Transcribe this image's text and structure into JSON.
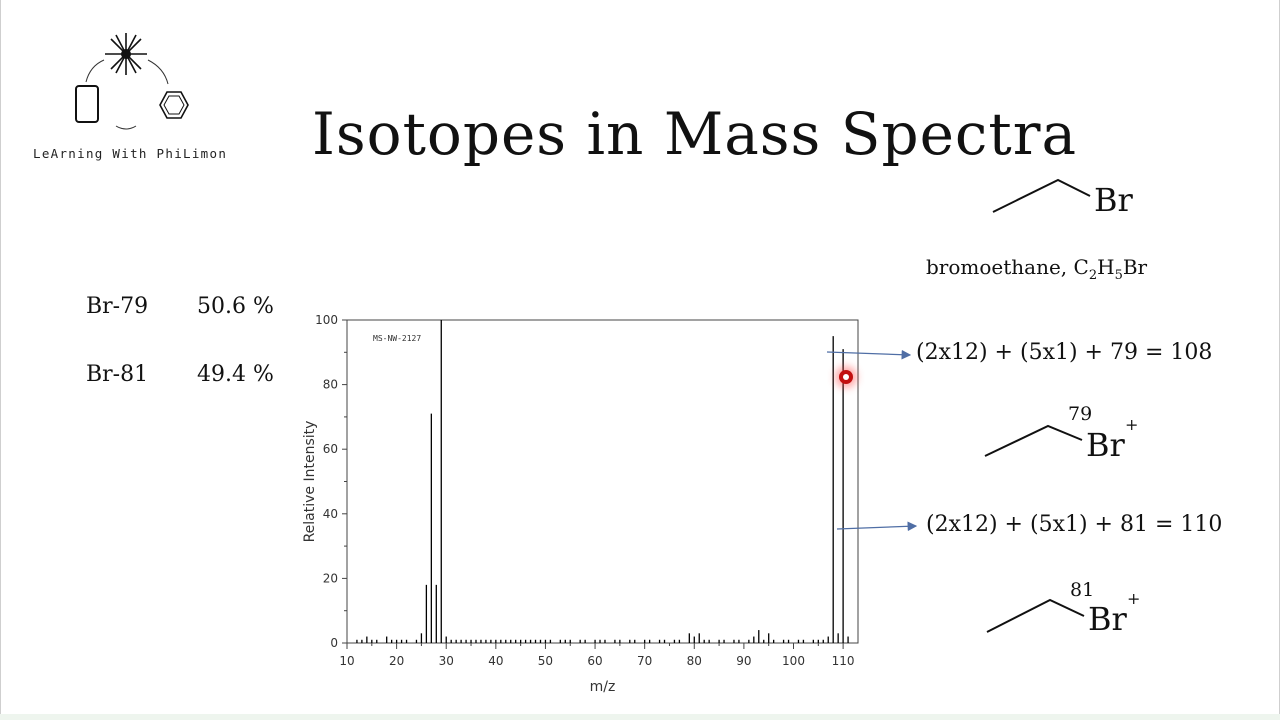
{
  "slide": {
    "title": "Isotopes in Mass Spectra",
    "logo_text": "LeArning With PhiLimon"
  },
  "isotopes": [
    {
      "label": "Br-79",
      "abundance": "50.6 %"
    },
    {
      "label": "Br-81",
      "abundance": "49.4 %"
    }
  ],
  "molecule": {
    "name_prefix": "bromoethane, C",
    "sub1": "2",
    "mid": "H",
    "sub2": "5",
    "suffix": "Br",
    "atom": "Br",
    "charge": "+",
    "iso79": "79",
    "iso81": "81"
  },
  "equations": {
    "eq1": "(2x12) + (5x1) + 79 = 108",
    "eq2": "(2x12) + (5x1) + 81 = 110"
  },
  "chart_data": {
    "type": "bar",
    "title": "MS-NW-2127",
    "xlabel": "m/z",
    "ylabel": "Relative Intensity",
    "xlim": [
      10,
      113
    ],
    "ylim": [
      0,
      100
    ],
    "xticks": [
      10,
      20,
      30,
      40,
      50,
      60,
      70,
      80,
      90,
      100,
      110
    ],
    "yticks": [
      0,
      20,
      40,
      60,
      80,
      100
    ],
    "points": [
      {
        "x": 12,
        "y": 1
      },
      {
        "x": 13,
        "y": 1
      },
      {
        "x": 14,
        "y": 2
      },
      {
        "x": 15,
        "y": 1
      },
      {
        "x": 16,
        "y": 1
      },
      {
        "x": 18,
        "y": 2
      },
      {
        "x": 19,
        "y": 1
      },
      {
        "x": 20,
        "y": 1
      },
      {
        "x": 21,
        "y": 1
      },
      {
        "x": 22,
        "y": 1
      },
      {
        "x": 24,
        "y": 1
      },
      {
        "x": 25,
        "y": 3
      },
      {
        "x": 26,
        "y": 18
      },
      {
        "x": 27,
        "y": 71
      },
      {
        "x": 28,
        "y": 18
      },
      {
        "x": 29,
        "y": 100
      },
      {
        "x": 30,
        "y": 2
      },
      {
        "x": 31,
        "y": 1
      },
      {
        "x": 32,
        "y": 1
      },
      {
        "x": 33,
        "y": 1
      },
      {
        "x": 34,
        "y": 1
      },
      {
        "x": 35,
        "y": 1
      },
      {
        "x": 36,
        "y": 1
      },
      {
        "x": 37,
        "y": 1
      },
      {
        "x": 38,
        "y": 1
      },
      {
        "x": 39,
        "y": 1
      },
      {
        "x": 40,
        "y": 1
      },
      {
        "x": 41,
        "y": 1
      },
      {
        "x": 42,
        "y": 1
      },
      {
        "x": 43,
        "y": 1
      },
      {
        "x": 44,
        "y": 1
      },
      {
        "x": 45,
        "y": 1
      },
      {
        "x": 46,
        "y": 1
      },
      {
        "x": 47,
        "y": 1
      },
      {
        "x": 48,
        "y": 1
      },
      {
        "x": 49,
        "y": 1
      },
      {
        "x": 50,
        "y": 1
      },
      {
        "x": 51,
        "y": 1
      },
      {
        "x": 53,
        "y": 1
      },
      {
        "x": 54,
        "y": 1
      },
      {
        "x": 55,
        "y": 1
      },
      {
        "x": 57,
        "y": 1
      },
      {
        "x": 58,
        "y": 1
      },
      {
        "x": 60,
        "y": 1
      },
      {
        "x": 61,
        "y": 1
      },
      {
        "x": 62,
        "y": 1
      },
      {
        "x": 64,
        "y": 1
      },
      {
        "x": 65,
        "y": 1
      },
      {
        "x": 67,
        "y": 1
      },
      {
        "x": 68,
        "y": 1
      },
      {
        "x": 70,
        "y": 1
      },
      {
        "x": 71,
        "y": 1
      },
      {
        "x": 73,
        "y": 1
      },
      {
        "x": 74,
        "y": 1
      },
      {
        "x": 76,
        "y": 1
      },
      {
        "x": 77,
        "y": 1
      },
      {
        "x": 79,
        "y": 3
      },
      {
        "x": 80,
        "y": 2
      },
      {
        "x": 81,
        "y": 3
      },
      {
        "x": 82,
        "y": 1
      },
      {
        "x": 83,
        "y": 1
      },
      {
        "x": 85,
        "y": 1
      },
      {
        "x": 86,
        "y": 1
      },
      {
        "x": 88,
        "y": 1
      },
      {
        "x": 89,
        "y": 1
      },
      {
        "x": 91,
        "y": 1
      },
      {
        "x": 92,
        "y": 2
      },
      {
        "x": 93,
        "y": 4
      },
      {
        "x": 94,
        "y": 1
      },
      {
        "x": 95,
        "y": 3
      },
      {
        "x": 96,
        "y": 1
      },
      {
        "x": 98,
        "y": 1
      },
      {
        "x": 99,
        "y": 1
      },
      {
        "x": 101,
        "y": 1
      },
      {
        "x": 102,
        "y": 1
      },
      {
        "x": 104,
        "y": 1
      },
      {
        "x": 105,
        "y": 1
      },
      {
        "x": 106,
        "y": 1
      },
      {
        "x": 107,
        "y": 2
      },
      {
        "x": 108,
        "y": 95
      },
      {
        "x": 109,
        "y": 3
      },
      {
        "x": 110,
        "y": 91
      },
      {
        "x": 111,
        "y": 2
      }
    ]
  },
  "colors": {
    "arrow": "#4f6ea5",
    "plot_line": "#000000",
    "cursor": "#c21010"
  }
}
